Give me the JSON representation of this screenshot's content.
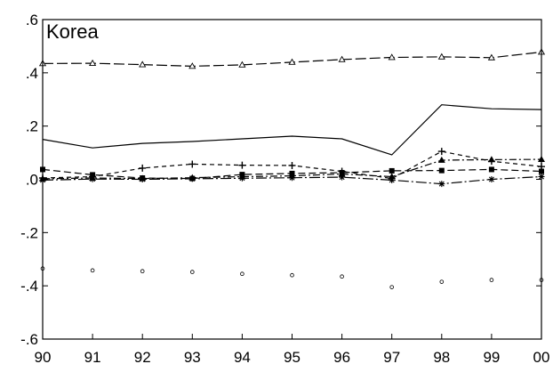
{
  "chart_data": {
    "type": "line",
    "panel_label": "Korea",
    "x": [
      "90",
      "91",
      "92",
      "93",
      "94",
      "95",
      "96",
      "97",
      "98",
      "99",
      "00"
    ],
    "ylim": [
      -0.6,
      0.6
    ],
    "yticks": [
      0.6,
      0.4,
      0.2,
      0.0,
      -0.2,
      -0.4,
      -0.6
    ],
    "ytick_labels": [
      ".6",
      ".4",
      ".2",
      ".0",
      "-.2",
      "-.4",
      "-.6"
    ],
    "grid": false,
    "series": [
      {
        "marker": "triangle-open",
        "line": "long-dash",
        "values": [
          0.435,
          0.436,
          0.431,
          0.425,
          0.43,
          0.44,
          0.45,
          0.458,
          0.46,
          0.457,
          0.478
        ]
      },
      {
        "marker": "none",
        "line": "solid",
        "values": [
          0.15,
          0.118,
          0.135,
          0.142,
          0.152,
          0.162,
          0.152,
          0.092,
          0.28,
          0.265,
          0.262
        ]
      },
      {
        "marker": "plus",
        "line": "short-dash",
        "values": [
          0.005,
          0.01,
          0.042,
          0.057,
          0.053,
          0.052,
          0.03,
          0.003,
          0.105,
          0.068,
          0.048
        ]
      },
      {
        "marker": "triangle-filled",
        "line": "dash-dot",
        "values": [
          0.002,
          0.005,
          0.003,
          0.006,
          0.01,
          0.013,
          0.02,
          0.01,
          0.072,
          0.074,
          0.075
        ]
      },
      {
        "marker": "square-filled",
        "line": "dash",
        "values": [
          0.037,
          0.017,
          0.005,
          0.003,
          0.018,
          0.022,
          0.025,
          0.032,
          0.033,
          0.037,
          0.03
        ]
      },
      {
        "marker": "star",
        "line": "long-dash-dot",
        "values": [
          -0.003,
          0.001,
          0.0,
          0.002,
          0.004,
          0.006,
          0.008,
          -0.003,
          -0.017,
          0.0,
          0.01
        ]
      },
      {
        "marker": "circle-open",
        "line": "none",
        "values": [
          -0.335,
          -0.342,
          -0.345,
          -0.348,
          -0.355,
          -0.36,
          -0.365,
          -0.405,
          -0.385,
          -0.378,
          -0.378
        ]
      }
    ]
  }
}
